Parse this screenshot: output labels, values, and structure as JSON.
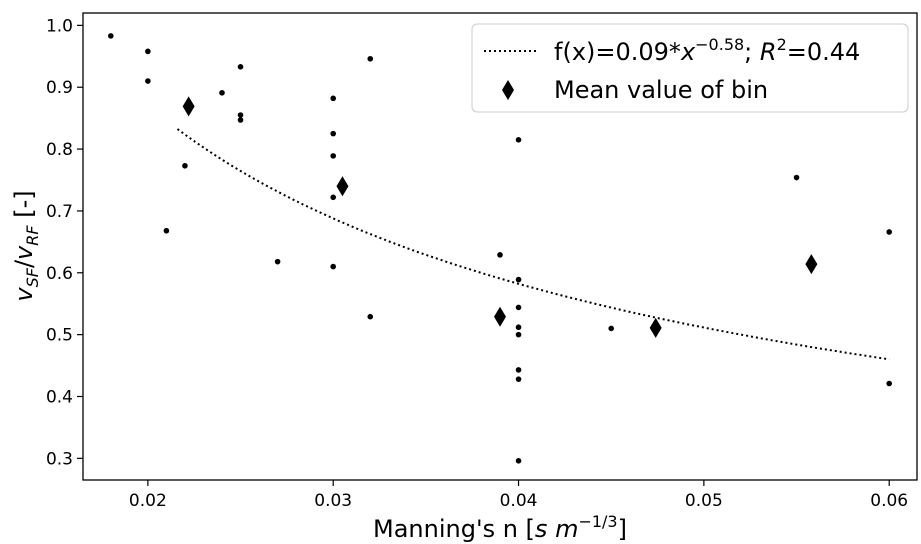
{
  "chart_data": {
    "type": "scatter",
    "xlim": [
      0.0165,
      0.0615
    ],
    "ylim": [
      0.265,
      1.02
    ],
    "xticks": [
      0.02,
      0.03,
      0.04,
      0.05,
      0.06
    ],
    "xtick_labels": [
      "0.02",
      "0.03",
      "0.04",
      "0.05",
      "0.06"
    ],
    "yticks": [
      0.3,
      0.4,
      0.5,
      0.6,
      0.7,
      0.8,
      0.9,
      1.0
    ],
    "ytick_labels": [
      "0.3",
      "0.4",
      "0.5",
      "0.6",
      "0.7",
      "0.8",
      "0.9",
      "1.0"
    ],
    "xlabel": {
      "prefix": "Manning's n [",
      "var1": "s",
      "gap": " ",
      "var2": "m",
      "sup": "−1/3",
      "suffix": "]"
    },
    "ylabel": {
      "a": "v",
      "a_sub": "SF",
      "slash": "/",
      "b": "v",
      "b_sub": "RF",
      "suffix": " [-]"
    },
    "grid": false,
    "legend_position": "top-right",
    "legend": {
      "fit_label": {
        "prefix": "f(x)=0.09*",
        "var": "x",
        "sup": "−0.58",
        "mid": "; ",
        "r": "R",
        "r_sup": "2",
        "suffix": "=0.44"
      },
      "mean_label": "Mean value of bin"
    },
    "series": [
      {
        "role": "observations",
        "marker": "dot",
        "points": [
          [
            0.018,
            0.983
          ],
          [
            0.02,
            0.958
          ],
          [
            0.02,
            0.91
          ],
          [
            0.021,
            0.668
          ],
          [
            0.022,
            0.773
          ],
          [
            0.024,
            0.891
          ],
          [
            0.025,
            0.933
          ],
          [
            0.025,
            0.855
          ],
          [
            0.025,
            0.847
          ],
          [
            0.027,
            0.618
          ],
          [
            0.03,
            0.882
          ],
          [
            0.03,
            0.825
          ],
          [
            0.03,
            0.789
          ],
          [
            0.03,
            0.722
          ],
          [
            0.03,
            0.61
          ],
          [
            0.032,
            0.946
          ],
          [
            0.032,
            0.529
          ],
          [
            0.039,
            0.629
          ],
          [
            0.04,
            0.815
          ],
          [
            0.04,
            0.589
          ],
          [
            0.04,
            0.544
          ],
          [
            0.04,
            0.512
          ],
          [
            0.04,
            0.5
          ],
          [
            0.04,
            0.443
          ],
          [
            0.04,
            0.428
          ],
          [
            0.04,
            0.296
          ],
          [
            0.045,
            0.51
          ],
          [
            0.055,
            0.754
          ],
          [
            0.06,
            0.666
          ],
          [
            0.06,
            0.421
          ]
        ]
      },
      {
        "role": "bin_means",
        "marker": "diamond",
        "points": [
          [
            0.0222,
            0.869
          ],
          [
            0.0305,
            0.74
          ],
          [
            0.039,
            0.529
          ],
          [
            0.0474,
            0.511
          ],
          [
            0.0558,
            0.614
          ]
        ]
      },
      {
        "role": "fit",
        "style": "dotted-line",
        "equation": "f(x)=0.09*x^-0.58",
        "coefficient": 0.09,
        "exponent": -0.58,
        "x_range": [
          0.0216,
          0.06
        ]
      }
    ]
  }
}
